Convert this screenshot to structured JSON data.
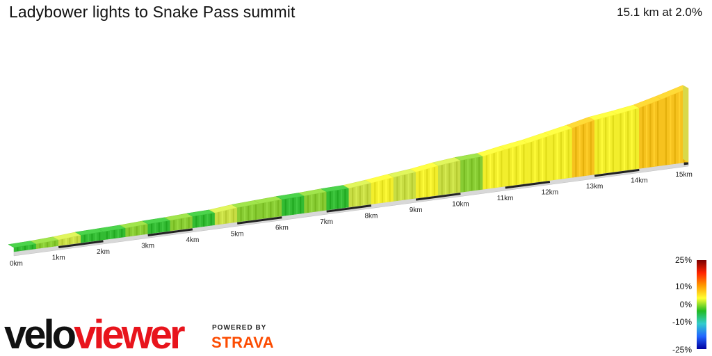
{
  "header": {
    "title": "Ladybower lights to Snake Pass summit",
    "stats": "15.1 km at 2.0%"
  },
  "chart_data": {
    "type": "area",
    "title": "Ladybower lights to Snake Pass summit",
    "subtitle": "15.1 km at 2.0%",
    "x_unit": "km",
    "x_ticks": [
      "0km",
      "1km",
      "2km",
      "3km",
      "4km",
      "5km",
      "6km",
      "7km",
      "8km",
      "9km",
      "10km",
      "11km",
      "12km",
      "13km",
      "14km",
      "15km"
    ],
    "total_distance_km": 15.1,
    "avg_gradient_pct": 2.0,
    "segments": [
      {
        "km_start": 0.0,
        "km_end": 0.5,
        "gradient_pct": 0.5
      },
      {
        "km_start": 0.5,
        "km_end": 1.0,
        "gradient_pct": 1.0
      },
      {
        "km_start": 1.0,
        "km_end": 1.5,
        "gradient_pct": 1.5
      },
      {
        "km_start": 1.5,
        "km_end": 2.0,
        "gradient_pct": 0.5
      },
      {
        "km_start": 2.0,
        "km_end": 2.5,
        "gradient_pct": 0.5
      },
      {
        "km_start": 2.5,
        "km_end": 3.0,
        "gradient_pct": 1.0
      },
      {
        "km_start": 3.0,
        "km_end": 3.5,
        "gradient_pct": 0.5
      },
      {
        "km_start": 3.5,
        "km_end": 4.0,
        "gradient_pct": 1.0
      },
      {
        "km_start": 4.0,
        "km_end": 4.5,
        "gradient_pct": 0.5
      },
      {
        "km_start": 4.5,
        "km_end": 5.0,
        "gradient_pct": 2.0
      },
      {
        "km_start": 5.0,
        "km_end": 5.5,
        "gradient_pct": 1.0
      },
      {
        "km_start": 5.5,
        "km_end": 6.0,
        "gradient_pct": 1.0
      },
      {
        "km_start": 6.0,
        "km_end": 6.5,
        "gradient_pct": 0.5
      },
      {
        "km_start": 6.5,
        "km_end": 7.0,
        "gradient_pct": 1.0
      },
      {
        "km_start": 7.0,
        "km_end": 7.5,
        "gradient_pct": 0.5
      },
      {
        "km_start": 7.5,
        "km_end": 8.0,
        "gradient_pct": 2.0
      },
      {
        "km_start": 8.0,
        "km_end": 8.5,
        "gradient_pct": 2.5
      },
      {
        "km_start": 8.5,
        "km_end": 9.0,
        "gradient_pct": 2.0
      },
      {
        "km_start": 9.0,
        "km_end": 9.5,
        "gradient_pct": 3.0
      },
      {
        "km_start": 9.5,
        "km_end": 10.0,
        "gradient_pct": 2.0
      },
      {
        "km_start": 10.0,
        "km_end": 10.5,
        "gradient_pct": 1.0
      },
      {
        "km_start": 10.5,
        "km_end": 11.0,
        "gradient_pct": 3.5
      },
      {
        "km_start": 11.0,
        "km_end": 11.5,
        "gradient_pct": 3.0
      },
      {
        "km_start": 11.5,
        "km_end": 12.0,
        "gradient_pct": 4.0
      },
      {
        "km_start": 12.0,
        "km_end": 12.5,
        "gradient_pct": 4.0
      },
      {
        "km_start": 12.5,
        "km_end": 13.0,
        "gradient_pct": 4.5
      },
      {
        "km_start": 13.0,
        "km_end": 13.5,
        "gradient_pct": 2.5
      },
      {
        "km_start": 13.5,
        "km_end": 14.0,
        "gradient_pct": 3.0
      },
      {
        "km_start": 14.0,
        "km_end": 14.5,
        "gradient_pct": 5.0
      },
      {
        "km_start": 14.5,
        "km_end": 15.1,
        "gradient_pct": 5.5
      }
    ],
    "legend": {
      "type": "gradient colour scale",
      "labels": [
        "25%",
        "10%",
        "0%",
        "-10%",
        "-25%"
      ],
      "colors": [
        "#7a0000",
        "#ff2200",
        "#ff9900",
        "#ffff33",
        "#22bb22",
        "#33cccc",
        "#2266ff",
        "#0000a0"
      ]
    }
  },
  "branding": {
    "logo_text": "veloviewer",
    "powered_by": "POWERED BY",
    "strava": "STRAVA"
  }
}
